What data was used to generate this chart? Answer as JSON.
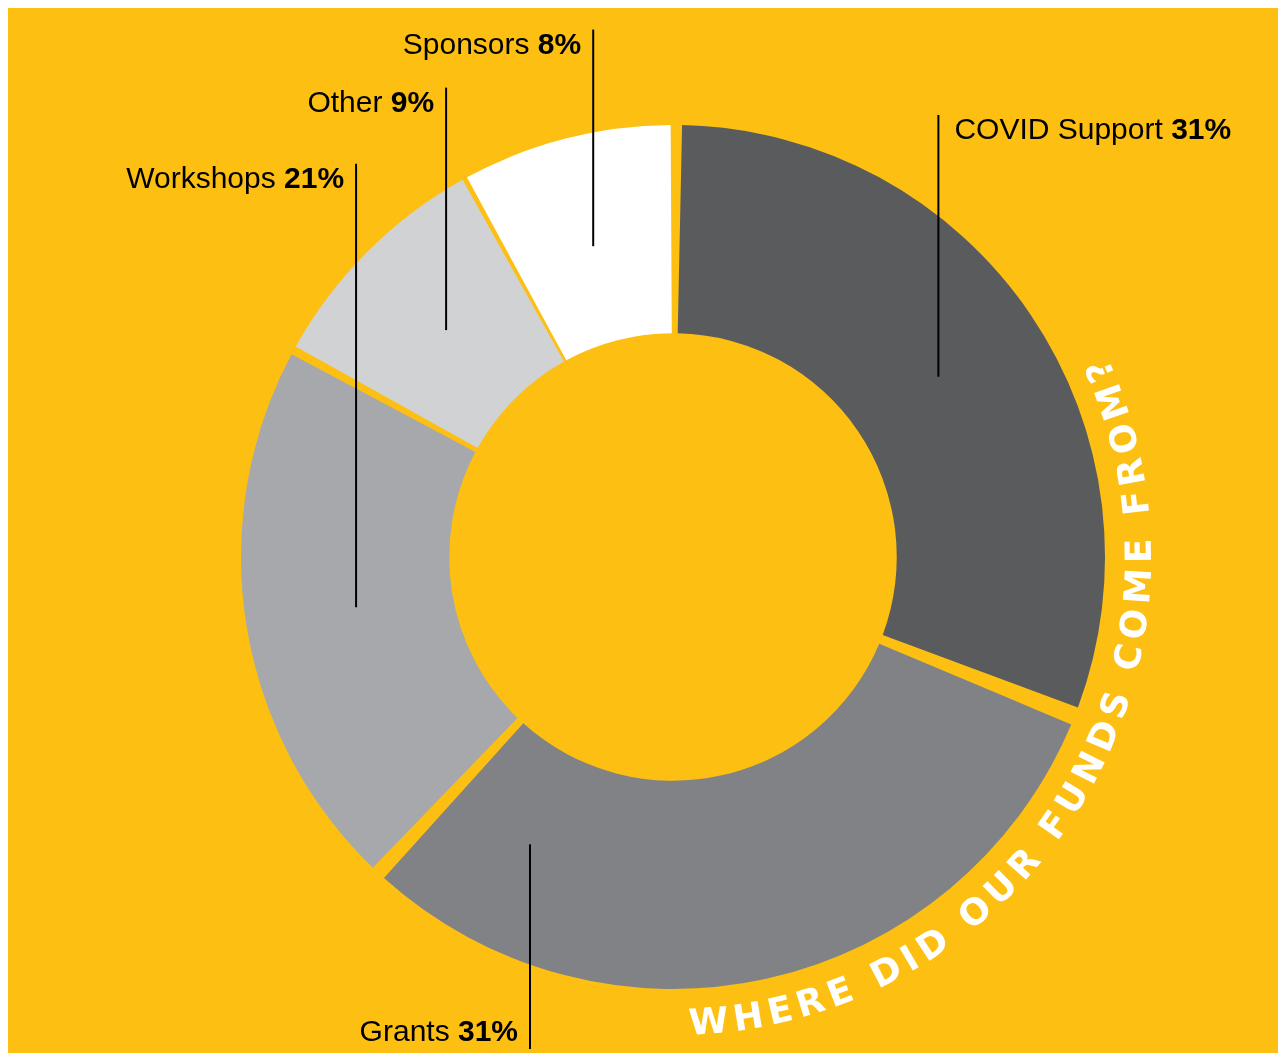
{
  "chart_data": {
    "type": "donut",
    "title": "WHERE DID OUR FUNDS COME FROM?",
    "categories": [
      "COVID Support",
      "Grants",
      "Workshops",
      "Other",
      "Sponsors"
    ],
    "values": [
      31,
      31,
      21,
      9,
      8
    ],
    "value_labels": [
      "31%",
      "31%",
      "21%",
      "9%",
      "8%"
    ],
    "colors": [
      "#5a5b5d",
      "#818285",
      "#a7a8ab",
      "#d1d2d4",
      "#ffffff"
    ],
    "legend": false
  }
}
